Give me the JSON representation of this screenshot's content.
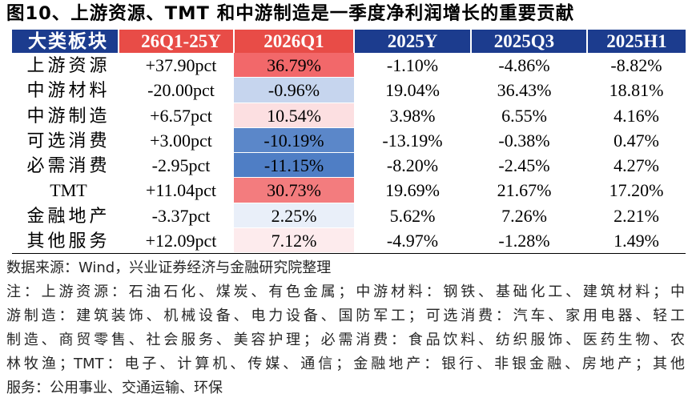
{
  "chart_data": {
    "type": "table",
    "title": "图10、上游资源、TMT 和中游制造是一季度净利润增长的重要贡献",
    "columns": [
      "大类板块",
      "26Q1-25Y",
      "2026Q1",
      "2025Y",
      "2025Q3",
      "2025H1"
    ],
    "rows": [
      [
        "上游资源",
        "+37.90pct",
        "36.79%",
        "-1.10%",
        "-4.86%",
        "-8.82%"
      ],
      [
        "中游材料",
        "-20.00pct",
        "-0.96%",
        "19.04%",
        "36.43%",
        "18.81%"
      ],
      [
        "中游制造",
        "+6.57pct",
        "10.54%",
        "3.98%",
        "6.55%",
        "4.16%"
      ],
      [
        "可选消费",
        "+3.00pct",
        "-10.19%",
        "-13.19%",
        "-0.38%",
        "0.47%"
      ],
      [
        "必需消费",
        "-2.95pct",
        "-11.15%",
        "-8.20%",
        "-2.45%",
        "4.27%"
      ],
      [
        "TMT",
        "+11.04pct",
        "30.73%",
        "19.69%",
        "21.67%",
        "17.20%"
      ],
      [
        "金融地产",
        "-3.37pct",
        "2.25%",
        "5.62%",
        "7.26%",
        "2.21%"
      ],
      [
        "其他服务",
        "+12.09pct",
        "7.12%",
        "-4.97%",
        "-1.28%",
        "1.49%"
      ]
    ],
    "highlighted_column_indices": [
      1,
      2
    ],
    "color_scale_column_index": 2,
    "q1_2026_cell_colors": [
      "#f2686a",
      "#c6d5ee",
      "#fcdfe1",
      "#5b87c9",
      "#4f7ec5",
      "#f37c7e",
      "#e9eff9",
      "#fdebed"
    ]
  },
  "colors": {
    "header_bg": "#1c3c8e",
    "header_highlight_bg": "#e84c47",
    "header_text": "#ffffff",
    "table_rule": "#000000"
  },
  "footer": {
    "source": "数据来源：Wind，兴业证券经济与金融研究院整理",
    "note_lines": [
      "注：上游资源：石油石化、煤炭、有色金属；中游材料：钢铁、基础化工、建筑材料；中",
      "游制造：建筑装饰、机械设备、电力设备、国防军工；可选消费：汽车、家用电器、轻工",
      "制造、商贸零售、社会服务、美容护理；必需消费：食品饮料、纺织服饰、医药生物、农",
      "林牧渔；TMT：电子、计算机、传媒、通信；金融地产：银行、非银金融、房地产；其他",
      "服务：公用事业、交通运输、环保"
    ]
  }
}
